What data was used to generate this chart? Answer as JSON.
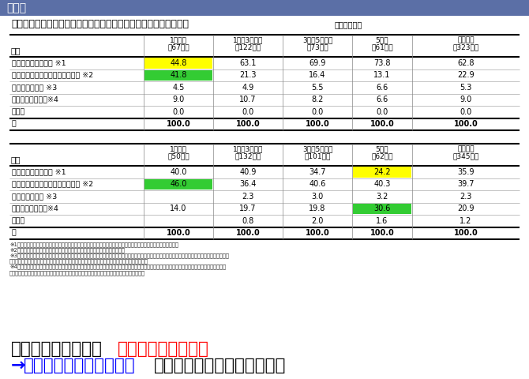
{
  "title_header": "まとめ",
  "title_main": "図表８　勤続期間別「初めての正社員勤務先」離職後１年間の状況",
  "title_unit": "（単位：％）",
  "male_header": [
    "1年以内",
    "1年超3年以内",
    "3年超5年以内",
    "5年超",
    "全離職者"
  ],
  "male_subheader": [
    "（67人）",
    "（122人）",
    "（73人）",
    "（61人）",
    "（323人）"
  ],
  "male_section_label": "男性",
  "male_rows": [
    {
      "label": "正社員として働いた ※1",
      "values": [
        "44.8",
        "63.1",
        "69.9",
        "73.8",
        "62.8"
      ],
      "highlight": [
        0
      ],
      "highlight_color": [
        "#FFFF00"
      ],
      "bold": false
    },
    {
      "label": "正社員以外の労働者として働いた ※2",
      "values": [
        "41.8",
        "21.3",
        "16.4",
        "13.1",
        "22.9"
      ],
      "highlight": [
        0
      ],
      "highlight_color": [
        "#33CC33"
      ],
      "bold": false
    },
    {
      "label": "就職活動をした ※3",
      "values": [
        "4.5",
        "4.9",
        "5.5",
        "6.6",
        "5.3"
      ],
      "highlight": [],
      "highlight_color": [],
      "bold": false
    },
    {
      "label": "一貫して非労働力※4",
      "values": [
        "9.0",
        "10.7",
        "8.2",
        "6.6",
        "9.0"
      ],
      "highlight": [],
      "highlight_color": [],
      "bold": false
    },
    {
      "label": "その他",
      "values": [
        "0.0",
        "0.0",
        "0.0",
        "0.0",
        "0.0"
      ],
      "highlight": [],
      "highlight_color": [],
      "bold": false
    },
    {
      "label": "計",
      "values": [
        "100.0",
        "100.0",
        "100.0",
        "100.0",
        "100.0"
      ],
      "highlight": [],
      "highlight_color": [],
      "bold": true
    }
  ],
  "female_header": [
    "1年以内",
    "1年超3年以内",
    "3年超5年以内",
    "5年超",
    "全離職者"
  ],
  "female_subheader": [
    "（50人）",
    "（132人）",
    "（101人）",
    "（62人）",
    "（345人）"
  ],
  "female_section_label": "女性",
  "female_rows": [
    {
      "label": "正社員として働いた ※1",
      "values": [
        "40.0",
        "40.9",
        "34.7",
        "24.2",
        "35.9"
      ],
      "highlight": [
        3
      ],
      "highlight_color": [
        "#FFFF00"
      ],
      "bold": false
    },
    {
      "label": "正社員以外の労働者として働いた ※2",
      "values": [
        "46.0",
        "36.4",
        "40.6",
        "40.3",
        "39.7"
      ],
      "highlight": [
        0
      ],
      "highlight_color": [
        "#33CC33"
      ],
      "bold": false
    },
    {
      "label": "就職活動をした ※3",
      "values": [
        "",
        "2.3",
        "3.0",
        "3.2",
        "2.3"
      ],
      "highlight": [],
      "highlight_color": [],
      "bold": false
    },
    {
      "label": "一貫して非労働力※4",
      "values": [
        "14.0",
        "19.7",
        "19.8",
        "30.6",
        "20.9"
      ],
      "highlight": [
        3
      ],
      "highlight_color": [
        "#33CC33"
      ],
      "bold": false
    },
    {
      "label": "その他",
      "values": [
        "",
        "0.8",
        "2.0",
        "1.6",
        "1.2"
      ],
      "highlight": [],
      "highlight_color": [],
      "bold": false
    },
    {
      "label": "計",
      "values": [
        "100.0",
        "100.0",
        "100.0",
        "100.0",
        "100.0"
      ],
      "highlight": [],
      "highlight_color": [],
      "bold": true
    }
  ],
  "footnotes": [
    "※1　同期間中に「正社員以外の労働者として働いた」「就職活動をした」「非労働力」であった時期もある人を含む",
    "※2　同期間中に「就職活動をした」「非労働力」であった時期もある人を含む",
    "※3　「契約社員として働いた」「派遣社員として働いた」「アルバイト・パートとして働いた」「雇用以外の形態（自営業・内職・家族従業等）で働い",
    "　　た」のいずれか１つ以上にあてはまる人（同期間中に非労働力であった時期もある人を含む）",
    "※4「学校（高校、専修学校、短大、高等専門学校、大学、大学院）に進学した（通信制含む）」「学校には進学せず、勉強をした」「家族の世話（家",
    "　　事・育児・介護など）をした」「傷業・休業していた」のいずれか１つ以上にあてはまる人"
  ],
  "bottom_line1_black": "初職での勤続期間が",
  "bottom_line1_red": "短いほど非正社員化",
  "bottom_line2_arrow": "→",
  "bottom_line2_blue": "不本意な早期離職の防止",
  "bottom_line2_black": "は離職後のキャリアにも重要",
  "header_bg": "#5B6FA6",
  "row_border_color": "#AAAAAA"
}
